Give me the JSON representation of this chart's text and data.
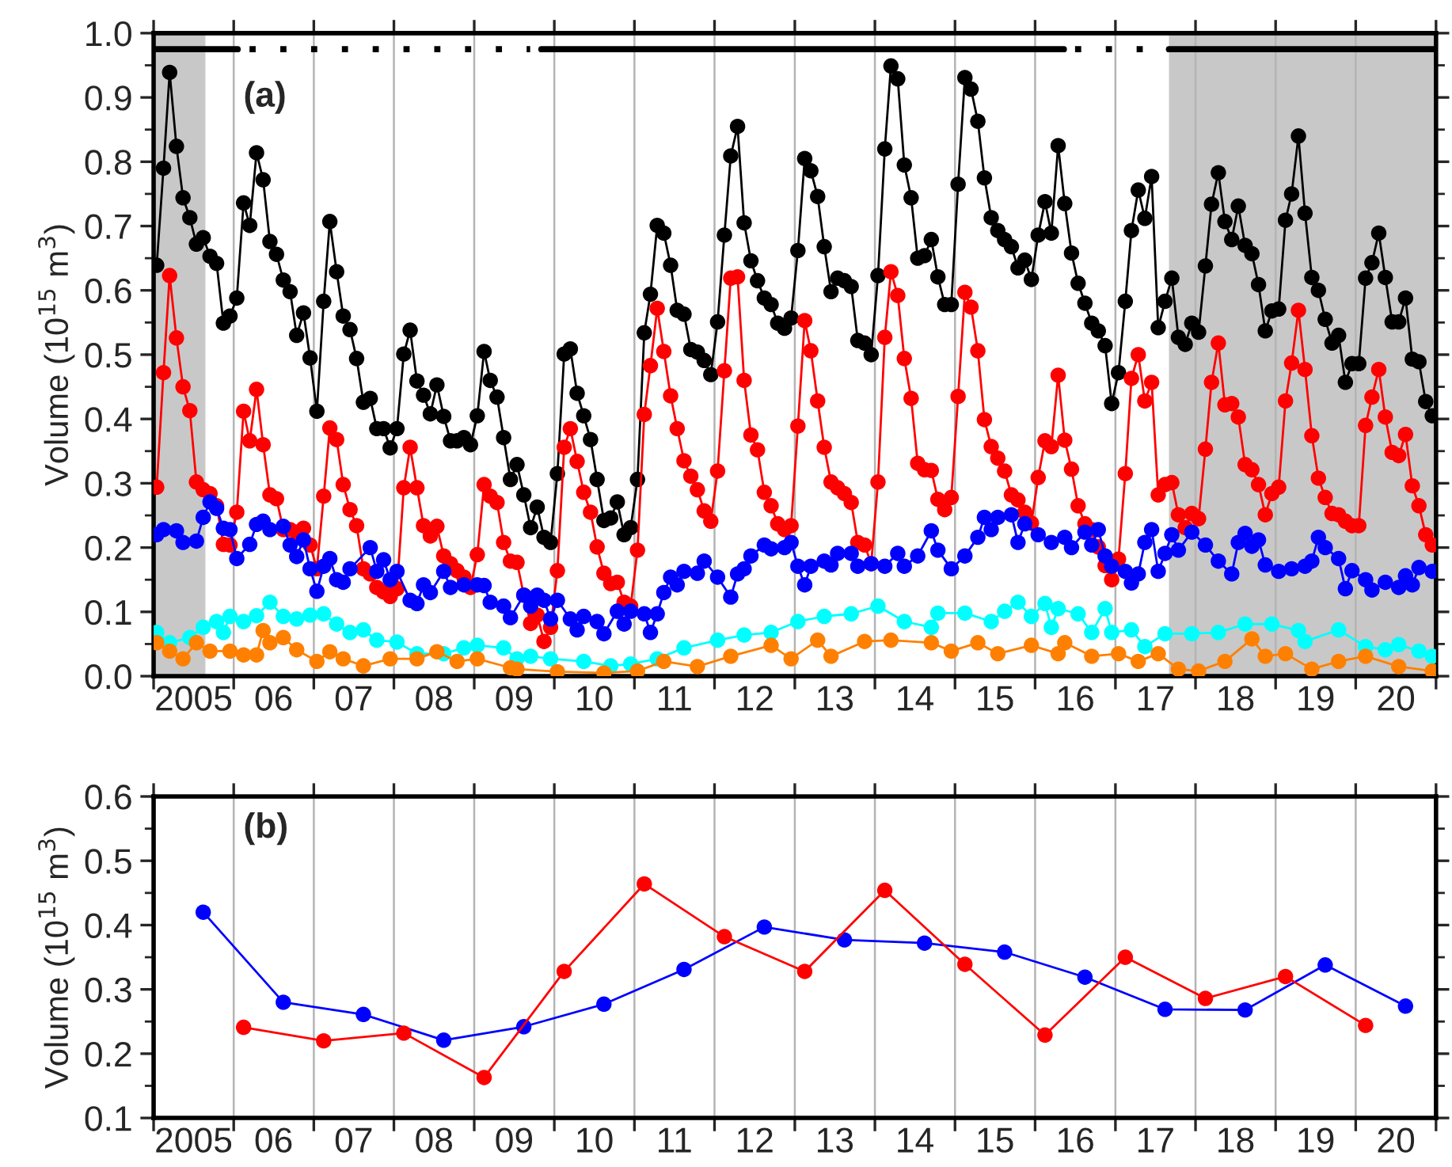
{
  "chart_data": [
    {
      "type": "line",
      "ylabel": "Volume (10$^{15}$ m$^{3}$)",
      "annotations": [
        "(a)"
      ],
      "marker": "circle",
      "line_style": "solid",
      "grid": "x",
      "xlim": [
        "2005-01-01",
        "2021-01-01"
      ],
      "ylim": [
        0,
        1
      ],
      "xticks": [
        {
          "value": "2005-01-01",
          "label": null
        },
        {
          "value": "2005-07-02",
          "label": "2005"
        },
        {
          "value": "2006-01-01",
          "label": null
        },
        {
          "value": "2006-07-02",
          "label": "06"
        },
        {
          "value": "2007-01-01",
          "label": null
        },
        {
          "value": "2007-07-02",
          "label": "07"
        },
        {
          "value": "2008-01-01",
          "label": null
        },
        {
          "value": "2008-07-02",
          "label": "08"
        },
        {
          "value": "2009-01-01",
          "label": null
        },
        {
          "value": "2009-07-02",
          "label": "09"
        },
        {
          "value": "2010-01-01",
          "label": null
        },
        {
          "value": "2010-07-02",
          "label": "10"
        },
        {
          "value": "2011-01-01",
          "label": null
        },
        {
          "value": "2011-07-02",
          "label": "11"
        },
        {
          "value": "2012-01-01",
          "label": null
        },
        {
          "value": "2012-07-02",
          "label": "12"
        },
        {
          "value": "2013-01-01",
          "label": null
        },
        {
          "value": "2013-07-02",
          "label": "13"
        },
        {
          "value": "2014-01-01",
          "label": null
        },
        {
          "value": "2014-07-02",
          "label": "14"
        },
        {
          "value": "2015-01-01",
          "label": null
        },
        {
          "value": "2015-07-02",
          "label": "15"
        },
        {
          "value": "2016-01-01",
          "label": null
        },
        {
          "value": "2016-07-02",
          "label": "16"
        },
        {
          "value": "2017-01-01",
          "label": null
        },
        {
          "value": "2017-07-02",
          "label": "17"
        },
        {
          "value": "2018-01-01",
          "label": null
        },
        {
          "value": "2018-07-02",
          "label": "18"
        },
        {
          "value": "2019-01-01",
          "label": null
        },
        {
          "value": "2019-07-02",
          "label": "19"
        },
        {
          "value": "2020-01-01",
          "label": null
        },
        {
          "value": "2020-07-02",
          "label": "20"
        },
        {
          "value": "2021-01-01",
          "label": null
        }
      ],
      "yticks": [
        {
          "value": 0,
          "label": "0.0"
        },
        {
          "value": 0.05,
          "label": null
        },
        {
          "value": 0.1,
          "label": "0.1"
        },
        {
          "value": 0.15,
          "label": null
        },
        {
          "value": 0.2,
          "label": "0.2"
        },
        {
          "value": 0.25,
          "label": null
        },
        {
          "value": 0.3,
          "label": "0.3"
        },
        {
          "value": 0.35,
          "label": null
        },
        {
          "value": 0.4,
          "label": "0.4"
        },
        {
          "value": 0.45,
          "label": null
        },
        {
          "value": 0.5,
          "label": "0.5"
        },
        {
          "value": 0.55,
          "label": null
        },
        {
          "value": 0.6,
          "label": "0.6"
        },
        {
          "value": 0.65,
          "label": null
        },
        {
          "value": 0.7,
          "label": "0.7"
        },
        {
          "value": 0.75,
          "label": null
        },
        {
          "value": 0.8,
          "label": "0.8"
        },
        {
          "value": 0.85,
          "label": null
        },
        {
          "value": 0.9,
          "label": "0.9"
        },
        {
          "value": 0.95,
          "label": null
        },
        {
          "value": 1,
          "label": "1.0"
        }
      ],
      "bands": [
        {
          "axis": "x",
          "from": "2005-01-01",
          "to": "2005-08-25",
          "color": "#c8c8c8"
        },
        {
          "axis": "x",
          "from": "2017-09-02",
          "to": "2021-01-01",
          "color": "#c8c8c8"
        }
      ],
      "x": [
        "2005-01",
        "2005-02",
        "2005-03",
        "2005-04",
        "2005-05",
        "2005-06",
        "2005-07",
        "2005-08",
        "2005-09",
        "2005-10",
        "2005-11",
        "2005-12",
        "2006-01",
        "2006-02",
        "2006-03",
        "2006-04",
        "2006-05",
        "2006-06",
        "2006-07",
        "2006-08",
        "2006-09",
        "2006-10",
        "2006-11",
        "2006-12",
        "2007-01",
        "2007-02",
        "2007-03",
        "2007-04",
        "2007-05",
        "2007-06",
        "2007-07",
        "2007-08",
        "2007-09",
        "2007-10",
        "2007-11",
        "2007-12",
        "2008-01",
        "2008-02",
        "2008-03",
        "2008-04",
        "2008-05",
        "2008-06",
        "2008-07",
        "2008-08",
        "2008-09",
        "2008-10",
        "2008-11",
        "2008-12",
        "2009-01",
        "2009-02",
        "2009-03",
        "2009-04",
        "2009-05",
        "2009-06",
        "2009-07",
        "2009-08",
        "2009-09",
        "2009-10",
        "2009-11",
        "2009-12",
        "2010-01",
        "2010-02",
        "2010-03",
        "2010-04",
        "2010-05",
        "2010-06",
        "2010-07",
        "2010-08",
        "2010-09",
        "2010-10",
        "2010-11",
        "2010-12",
        "2011-01",
        "2011-02",
        "2011-03",
        "2011-04",
        "2011-05",
        "2011-06",
        "2011-07",
        "2011-08",
        "2011-09",
        "2011-10",
        "2011-11",
        "2011-12",
        "2012-01",
        "2012-02",
        "2012-03",
        "2012-04",
        "2012-05",
        "2012-06",
        "2012-07",
        "2012-08",
        "2012-09",
        "2012-10",
        "2012-11",
        "2012-12",
        "2013-01",
        "2013-02",
        "2013-03",
        "2013-04",
        "2013-05",
        "2013-06",
        "2013-07",
        "2013-08",
        "2013-09",
        "2013-10",
        "2013-11",
        "2013-12",
        "2014-01",
        "2014-02",
        "2014-03",
        "2014-04",
        "2014-05",
        "2014-06",
        "2014-07",
        "2014-08",
        "2014-09",
        "2014-10",
        "2014-11",
        "2014-12",
        "2015-01",
        "2015-02",
        "2015-03",
        "2015-04",
        "2015-05",
        "2015-06",
        "2015-07",
        "2015-08",
        "2015-09",
        "2015-10",
        "2015-11",
        "2015-12",
        "2016-01",
        "2016-02",
        "2016-03",
        "2016-04",
        "2016-05",
        "2016-06",
        "2016-07",
        "2016-08",
        "2016-09",
        "2016-10",
        "2016-11",
        "2016-12",
        "2017-01",
        "2017-02",
        "2017-03",
        "2017-04",
        "2017-05",
        "2017-06",
        "2017-07",
        "2017-08",
        "2017-09",
        "2017-10",
        "2017-11",
        "2017-12",
        "2018-01",
        "2018-02",
        "2018-03",
        "2018-04",
        "2018-05",
        "2018-06",
        "2018-07",
        "2018-08",
        "2018-09",
        "2018-10",
        "2018-11",
        "2018-12",
        "2019-01",
        "2019-02",
        "2019-03",
        "2019-04",
        "2019-05",
        "2019-06",
        "2019-07",
        "2019-08",
        "2019-09",
        "2019-10",
        "2019-11",
        "2019-12",
        "2020-01",
        "2020-02",
        "2020-03",
        "2020-04",
        "2020-05",
        "2020-06",
        "2020-07",
        "2020-08",
        "2020-09",
        "2020-10",
        "2020-11",
        "2020-12"
      ],
      "series": [
        {
          "color": "#000000",
          "values": [
            0.639,
            0.79,
            0.939,
            0.824,
            0.744,
            0.713,
            0.672,
            0.682,
            0.653,
            0.642,
            0.549,
            0.56,
            0.588,
            0.736,
            0.701,
            0.814,
            0.772,
            0.676,
            0.656,
            0.616,
            0.598,
            0.53,
            0.565,
            0.495,
            0.412,
            0.583,
            0.707,
            0.629,
            0.56,
            0.539,
            0.494,
            0.426,
            0.432,
            0.385,
            0.385,
            0.355,
            0.385,
            0.501,
            0.538,
            0.459,
            0.437,
            0.408,
            0.453,
            0.404,
            0.366,
            0.366,
            0.371,
            0.36,
            0.405,
            0.505,
            0.46,
            0.434,
            0.371,
            0.306,
            0.329,
            0.282,
            0.231,
            0.263,
            0.216,
            0.208,
            0.315,
            0.501,
            0.509,
            0.44,
            0.405,
            0.368,
            0.306,
            0.242,
            0.246,
            0.271,
            0.22,
            0.231,
            0.306,
            0.534,
            0.594,
            0.701,
            0.689,
            0.639,
            0.569,
            0.563,
            0.508,
            0.504,
            0.491,
            0.469,
            0.551,
            0.686,
            0.809,
            0.855,
            0.705,
            0.646,
            0.615,
            0.588,
            0.578,
            0.549,
            0.541,
            0.557,
            0.662,
            0.805,
            0.786,
            0.746,
            0.668,
            0.598,
            0.619,
            0.615,
            0.606,
            0.522,
            0.518,
            0.5,
            0.623,
            0.82,
            0.949,
            0.929,
            0.795,
            0.744,
            0.65,
            0.654,
            0.679,
            0.621,
            0.578,
            0.578,
            0.765,
            0.931,
            0.913,
            0.863,
            0.775,
            0.713,
            0.693,
            0.679,
            0.668,
            0.635,
            0.647,
            0.617,
            0.686,
            0.738,
            0.689,
            0.825,
            0.735,
            0.658,
            0.611,
            0.58,
            0.549,
            0.537,
            0.514,
            0.424,
            0.472,
            0.583,
            0.693,
            0.756,
            0.712,
            0.777,
            0.542,
            0.583,
            0.619,
            0.527,
            0.516,
            0.549,
            0.535,
            0.638,
            0.734,
            0.783,
            0.707,
            0.679,
            0.731,
            0.67,
            0.657,
            0.609,
            0.537,
            0.568,
            0.571,
            0.709,
            0.75,
            0.84,
            0.72,
            0.62,
            0.6,
            0.555,
            0.518,
            0.53,
            0.457,
            0.486,
            0.486,
            0.619,
            0.643,
            0.689,
            0.62,
            0.551,
            0.551,
            0.588,
            0.493,
            0.489,
            0.427,
            0.405
          ]
        },
        {
          "color": "#ff0000",
          "values": [
            0.294,
            0.472,
            0.623,
            0.526,
            0.45,
            0.413,
            0.302,
            0.29,
            0.284,
            0.265,
            0.205,
            0.204,
            0.255,
            0.412,
            0.366,
            0.446,
            0.36,
            0.282,
            0.276,
            0.228,
            0.228,
            0.224,
            0.23,
            0.204,
            0.167,
            0.28,
            0.386,
            0.368,
            0.298,
            0.259,
            0.234,
            0.167,
            0.159,
            0.138,
            0.131,
            0.124,
            0.136,
            0.293,
            0.356,
            0.293,
            0.234,
            0.218,
            0.233,
            0.187,
            0.175,
            0.164,
            0.154,
            0.138,
            0.189,
            0.298,
            0.28,
            0.27,
            0.208,
            0.179,
            0.177,
            0.126,
            0.082,
            0.095,
            0.054,
            0.076,
            0.164,
            0.356,
            0.385,
            0.334,
            0.286,
            0.255,
            0.201,
            0.16,
            0.144,
            0.146,
            0.115,
            0.109,
            0.196,
            0.407,
            0.483,
            0.572,
            0.505,
            0.436,
            0.385,
            0.335,
            0.311,
            0.29,
            0.257,
            0.241,
            0.319,
            0.475,
            0.619,
            0.621,
            0.46,
            0.375,
            0.352,
            0.286,
            0.265,
            0.237,
            0.228,
            0.234,
            0.389,
            0.553,
            0.506,
            0.428,
            0.356,
            0.302,
            0.293,
            0.284,
            0.27,
            0.208,
            0.204,
            0.175,
            0.302,
            0.527,
            0.629,
            0.592,
            0.494,
            0.432,
            0.331,
            0.321,
            0.32,
            0.275,
            0.259,
            0.278,
            0.435,
            0.597,
            0.574,
            0.506,
            0.399,
            0.357,
            0.339,
            0.319,
            0.282,
            0.274,
            0.255,
            0.238,
            0.309,
            0.366,
            0.357,
            0.468,
            0.367,
            0.322,
            0.265,
            0.237,
            0.228,
            0.201,
            0.172,
            0.15,
            0.182,
            0.315,
            0.463,
            0.5,
            0.428,
            0.457,
            0.282,
            0.298,
            0.301,
            0.251,
            0.231,
            0.253,
            0.245,
            0.353,
            0.457,
            0.518,
            0.422,
            0.424,
            0.403,
            0.329,
            0.321,
            0.298,
            0.251,
            0.284,
            0.294,
            0.428,
            0.487,
            0.569,
            0.477,
            0.374,
            0.308,
            0.278,
            0.253,
            0.251,
            0.241,
            0.234,
            0.234,
            0.39,
            0.434,
            0.477,
            0.403,
            0.348,
            0.343,
            0.376,
            0.296,
            0.265,
            0.22,
            0.204
          ]
        },
        {
          "color": "#0000ff",
          "x": [
            "2005-01",
            "2005-02",
            "2005-04",
            "2005-05",
            "2005-07",
            "2005-08",
            "2005-09",
            "2005-10",
            "2005-11",
            "2005-12",
            "2006-01",
            "2006-03",
            "2006-04",
            "2006-05",
            "2006-06",
            "2006-08",
            "2006-09",
            "2006-10",
            "2006-11",
            "2006-12",
            "2007-01",
            "2007-02",
            "2007-03",
            "2007-04",
            "2007-05",
            "2007-06",
            "2007-09",
            "2007-10",
            "2007-11",
            "2007-12",
            "2008-01",
            "2008-03",
            "2008-04",
            "2008-05",
            "2008-06",
            "2008-08",
            "2008-09",
            "2008-11",
            "2009-01",
            "2009-02",
            "2009-03",
            "2009-05",
            "2009-06",
            "2009-08",
            "2009-09",
            "2009-10",
            "2009-11",
            "2009-12",
            "2010-01",
            "2010-03",
            "2010-04",
            "2010-05",
            "2010-07",
            "2010-08",
            "2010-10",
            "2010-11",
            "2010-12",
            "2011-02",
            "2011-03",
            "2011-04",
            "2011-05",
            "2011-06",
            "2011-07",
            "2011-08",
            "2011-10",
            "2011-11",
            "2012-01",
            "2012-03",
            "2012-04",
            "2012-05",
            "2012-06",
            "2012-08",
            "2012-09",
            "2012-11",
            "2012-12",
            "2013-01",
            "2013-02",
            "2013-03",
            "2013-05",
            "2013-06",
            "2013-07",
            "2013-09",
            "2013-10",
            "2013-12",
            "2014-02",
            "2014-04",
            "2014-05",
            "2014-07",
            "2014-09",
            "2014-10",
            "2014-12",
            "2015-02",
            "2015-04",
            "2015-05",
            "2015-06",
            "2015-07",
            "2015-09",
            "2015-10",
            "2015-11",
            "2016-01",
            "2016-03",
            "2016-05",
            "2016-06",
            "2016-08",
            "2016-09",
            "2016-10",
            "2016-11",
            "2016-12",
            "2017-02",
            "2017-03",
            "2017-04",
            "2017-05",
            "2017-06",
            "2017-07",
            "2017-08",
            "2017-09",
            "2017-10",
            "2017-12",
            "2018-02",
            "2018-04",
            "2018-06",
            "2018-07",
            "2018-08",
            "2018-09",
            "2018-10",
            "2018-11",
            "2019-01",
            "2019-03",
            "2019-05",
            "2019-06",
            "2019-07",
            "2019-08",
            "2019-10",
            "2019-11",
            "2019-12",
            "2020-02",
            "2020-03",
            "2020-05",
            "2020-07",
            "2020-08",
            "2020-09",
            "2020-10",
            "2020-12"
          ],
          "values": [
            0.22,
            0.228,
            0.226,
            0.208,
            0.21,
            0.247,
            0.271,
            0.261,
            0.23,
            0.228,
            0.183,
            0.205,
            0.236,
            0.241,
            0.228,
            0.233,
            0.204,
            0.186,
            0.212,
            0.167,
            0.132,
            0.171,
            0.183,
            0.15,
            0.146,
            0.167,
            0.2,
            0.163,
            0.181,
            0.15,
            0.163,
            0.118,
            0.113,
            0.142,
            0.13,
            0.163,
            0.138,
            0.142,
            0.142,
            0.141,
            0.115,
            0.109,
            0.091,
            0.126,
            0.109,
            0.126,
            0.118,
            0.089,
            0.118,
            0.089,
            0.072,
            0.093,
            0.085,
            0.066,
            0.101,
            0.081,
            0.101,
            0.097,
            0.068,
            0.097,
            0.13,
            0.154,
            0.142,
            0.163,
            0.16,
            0.179,
            0.154,
            0.123,
            0.159,
            0.167,
            0.187,
            0.204,
            0.198,
            0.2,
            0.208,
            0.171,
            0.142,
            0.171,
            0.179,
            0.173,
            0.191,
            0.191,
            0.171,
            0.175,
            0.171,
            0.191,
            0.171,
            0.187,
            0.226,
            0.196,
            0.167,
            0.187,
            0.216,
            0.247,
            0.228,
            0.247,
            0.251,
            0.208,
            0.237,
            0.22,
            0.208,
            0.216,
            0.2,
            0.224,
            0.204,
            0.228,
            0.187,
            0.171,
            0.163,
            0.145,
            0.159,
            0.208,
            0.228,
            0.163,
            0.191,
            0.22,
            0.196,
            0.224,
            0.204,
            0.179,
            0.159,
            0.208,
            0.222,
            0.202,
            0.212,
            0.173,
            0.163,
            0.167,
            0.171,
            0.179,
            0.216,
            0.2,
            0.183,
            0.136,
            0.164,
            0.15,
            0.134,
            0.146,
            0.138,
            0.156,
            0.142,
            0.169,
            0.163
          ]
        },
        {
          "color": "#00ffff",
          "x": [
            "2005-01",
            "2005-03",
            "2005-06",
            "2005-08",
            "2005-10",
            "2005-11",
            "2005-12",
            "2006-02",
            "2006-04",
            "2006-06",
            "2006-08",
            "2006-10",
            "2006-12",
            "2007-02",
            "2007-04",
            "2007-06",
            "2007-08",
            "2007-10",
            "2008-01",
            "2008-04",
            "2008-08",
            "2008-11",
            "2009-01",
            "2009-05",
            "2009-07",
            "2009-09",
            "2009-12",
            "2010-05",
            "2010-09",
            "2010-12",
            "2011-04",
            "2011-08",
            "2012-01",
            "2012-05",
            "2012-09",
            "2013-01",
            "2013-05",
            "2013-09",
            "2014-01",
            "2014-05",
            "2014-09",
            "2014-10",
            "2015-02",
            "2015-06",
            "2015-08",
            "2015-10",
            "2015-12",
            "2016-02",
            "2016-03",
            "2016-04",
            "2016-07",
            "2016-09",
            "2016-11",
            "2016-12",
            "2017-03",
            "2017-05",
            "2017-08",
            "2017-12",
            "2018-04",
            "2018-08",
            "2018-12",
            "2019-04",
            "2019-05",
            "2019-10",
            "2020-02",
            "2020-05",
            "2020-07",
            "2020-10",
            "2020-12"
          ],
          "values": [
            0.068,
            0.052,
            0.06,
            0.076,
            0.085,
            0.068,
            0.093,
            0.085,
            0.094,
            0.115,
            0.093,
            0.089,
            0.095,
            0.097,
            0.081,
            0.068,
            0.072,
            0.056,
            0.053,
            0.035,
            0.035,
            0.044,
            0.048,
            0.044,
            0.027,
            0.031,
            0.027,
            0.023,
            0.016,
            0.019,
            0.027,
            0.044,
            0.056,
            0.064,
            0.068,
            0.085,
            0.093,
            0.097,
            0.109,
            0.085,
            0.076,
            0.098,
            0.098,
            0.085,
            0.101,
            0.115,
            0.093,
            0.113,
            0.076,
            0.105,
            0.097,
            0.068,
            0.105,
            0.068,
            0.072,
            0.046,
            0.066,
            0.066,
            0.068,
            0.081,
            0.081,
            0.071,
            0.054,
            0.072,
            0.046,
            0.041,
            0.049,
            0.039,
            0.031
          ]
        },
        {
          "color": "#ff8000",
          "x": [
            "2005-01",
            "2005-03",
            "2005-05",
            "2005-07",
            "2005-09",
            "2005-12",
            "2006-02",
            "2006-04",
            "2006-05",
            "2006-06",
            "2006-08",
            "2006-10",
            "2007-01",
            "2007-03",
            "2007-05",
            "2007-08",
            "2007-12",
            "2008-04",
            "2008-07",
            "2008-10",
            "2009-01",
            "2009-06",
            "2009-07",
            "2010-01",
            "2010-08",
            "2011-01",
            "2011-05",
            "2011-10",
            "2012-03",
            "2012-09",
            "2012-12",
            "2013-04",
            "2013-06",
            "2013-11",
            "2014-03",
            "2014-09",
            "2014-12",
            "2015-04",
            "2015-07",
            "2015-12",
            "2016-04",
            "2016-05",
            "2016-09",
            "2017-01",
            "2017-04",
            "2017-07",
            "2017-10",
            "2018-01",
            "2018-05",
            "2018-09",
            "2018-11",
            "2019-02",
            "2019-06",
            "2019-10",
            "2020-02",
            "2020-07",
            "2020-12"
          ],
          "values": [
            0.052,
            0.039,
            0.027,
            0.052,
            0.039,
            0.039,
            0.033,
            0.033,
            0.071,
            0.052,
            0.06,
            0.041,
            0.023,
            0.038,
            0.027,
            0.016,
            0.027,
            0.027,
            0.038,
            0.023,
            0.027,
            0.013,
            0.011,
            0.007,
            0.005,
            0.008,
            0.023,
            0.015,
            0.031,
            0.048,
            0.027,
            0.056,
            0.031,
            0.054,
            0.056,
            0.052,
            0.039,
            0.052,
            0.035,
            0.048,
            0.035,
            0.052,
            0.031,
            0.035,
            0.023,
            0.035,
            0.011,
            0.008,
            0.023,
            0.058,
            0.031,
            0.035,
            0.011,
            0.023,
            0.031,
            0.015,
            0.008
          ]
        },
        {
          "color": "#000000",
          "marker": "none",
          "line_style": "solid",
          "x": [
            "2005-01-01",
            "2006-01-19"
          ],
          "values": [
            0.975,
            0.975
          ]
        },
        {
          "color": "#000000",
          "marker": "none",
          "line_style": "dotted",
          "x": [
            "2006-03-14",
            "2009-09-13"
          ],
          "values": [
            0.975,
            0.975
          ]
        },
        {
          "color": "#000000",
          "marker": "none",
          "line_style": "solid",
          "x": [
            "2009-11-03",
            "2016-05-11"
          ],
          "values": [
            0.975,
            0.975
          ]
        },
        {
          "color": "#000000",
          "marker": "none",
          "line_style": "dotted",
          "x": [
            "2016-07-01",
            "2017-08-08"
          ],
          "values": [
            0.975,
            0.975
          ]
        },
        {
          "color": "#000000",
          "marker": "none",
          "line_style": "solid",
          "x": [
            "2017-09-02",
            "2021-01-01"
          ],
          "values": [
            0.975,
            0.975
          ]
        }
      ]
    },
    {
      "type": "line",
      "ylabel": "Volume (10$^{15}$ m$^{3}$)",
      "annotations": [
        "(b)"
      ],
      "marker": "circle",
      "line_style": "solid",
      "grid": "x",
      "xlim": [
        "2005-01-01",
        "2021-01-01"
      ],
      "ylim": [
        0.1,
        0.6
      ],
      "xticks": [
        {
          "value": "2005-01-01",
          "label": null
        },
        {
          "value": "2005-07-02",
          "label": "2005"
        },
        {
          "value": "2006-01-01",
          "label": null
        },
        {
          "value": "2006-07-02",
          "label": "06"
        },
        {
          "value": "2007-01-01",
          "label": null
        },
        {
          "value": "2007-07-02",
          "label": "07"
        },
        {
          "value": "2008-01-01",
          "label": null
        },
        {
          "value": "2008-07-02",
          "label": "08"
        },
        {
          "value": "2009-01-01",
          "label": null
        },
        {
          "value": "2009-07-02",
          "label": "09"
        },
        {
          "value": "2010-01-01",
          "label": null
        },
        {
          "value": "2010-07-02",
          "label": "10"
        },
        {
          "value": "2011-01-01",
          "label": null
        },
        {
          "value": "2011-07-02",
          "label": "11"
        },
        {
          "value": "2012-01-01",
          "label": null
        },
        {
          "value": "2012-07-02",
          "label": "12"
        },
        {
          "value": "2013-01-01",
          "label": null
        },
        {
          "value": "2013-07-02",
          "label": "13"
        },
        {
          "value": "2014-01-01",
          "label": null
        },
        {
          "value": "2014-07-02",
          "label": "14"
        },
        {
          "value": "2015-01-01",
          "label": null
        },
        {
          "value": "2015-07-02",
          "label": "15"
        },
        {
          "value": "2016-01-01",
          "label": null
        },
        {
          "value": "2016-07-02",
          "label": "16"
        },
        {
          "value": "2017-01-01",
          "label": null
        },
        {
          "value": "2017-07-02",
          "label": "17"
        },
        {
          "value": "2018-01-01",
          "label": null
        },
        {
          "value": "2018-07-02",
          "label": "18"
        },
        {
          "value": "2019-01-01",
          "label": null
        },
        {
          "value": "2019-07-02",
          "label": "19"
        },
        {
          "value": "2020-01-01",
          "label": null
        },
        {
          "value": "2020-07-02",
          "label": "20"
        },
        {
          "value": "2021-01-01",
          "label": null
        }
      ],
      "yticks": [
        {
          "value": 0.1,
          "label": "0.1"
        },
        {
          "value": 0.15,
          "label": null
        },
        {
          "value": 0.2,
          "label": "0.2"
        },
        {
          "value": 0.25,
          "label": null
        },
        {
          "value": 0.3,
          "label": "0.3"
        },
        {
          "value": 0.35,
          "label": null
        },
        {
          "value": 0.4,
          "label": "0.4"
        },
        {
          "value": 0.45,
          "label": null
        },
        {
          "value": 0.5,
          "label": "0.5"
        },
        {
          "value": 0.55,
          "label": null
        },
        {
          "value": 0.6,
          "label": "0.6"
        }
      ],
      "series": [
        {
          "color": "#0000ff",
          "x": [
            "2005-08",
            "2006-08",
            "2007-08",
            "2008-08",
            "2009-08",
            "2010-08",
            "2011-08",
            "2012-08",
            "2013-08",
            "2014-08",
            "2015-08",
            "2016-08",
            "2017-08",
            "2018-08",
            "2019-08",
            "2020-08"
          ],
          "values": [
            0.42,
            0.28,
            0.261,
            0.221,
            0.242,
            0.277,
            0.331,
            0.397,
            0.377,
            0.372,
            0.358,
            0.319,
            0.269,
            0.268,
            0.338,
            0.274
          ]
        },
        {
          "color": "#ff0000",
          "x": [
            "2006-02",
            "2007-02",
            "2008-02",
            "2009-02",
            "2010-02",
            "2011-02",
            "2012-02",
            "2013-02",
            "2014-02",
            "2015-02",
            "2016-02",
            "2017-02",
            "2018-02",
            "2019-02",
            "2020-02"
          ],
          "values": [
            0.241,
            0.22,
            0.232,
            0.163,
            0.328,
            0.464,
            0.382,
            0.328,
            0.454,
            0.339,
            0.229,
            0.35,
            0.286,
            0.32,
            0.244
          ]
        }
      ]
    }
  ]
}
